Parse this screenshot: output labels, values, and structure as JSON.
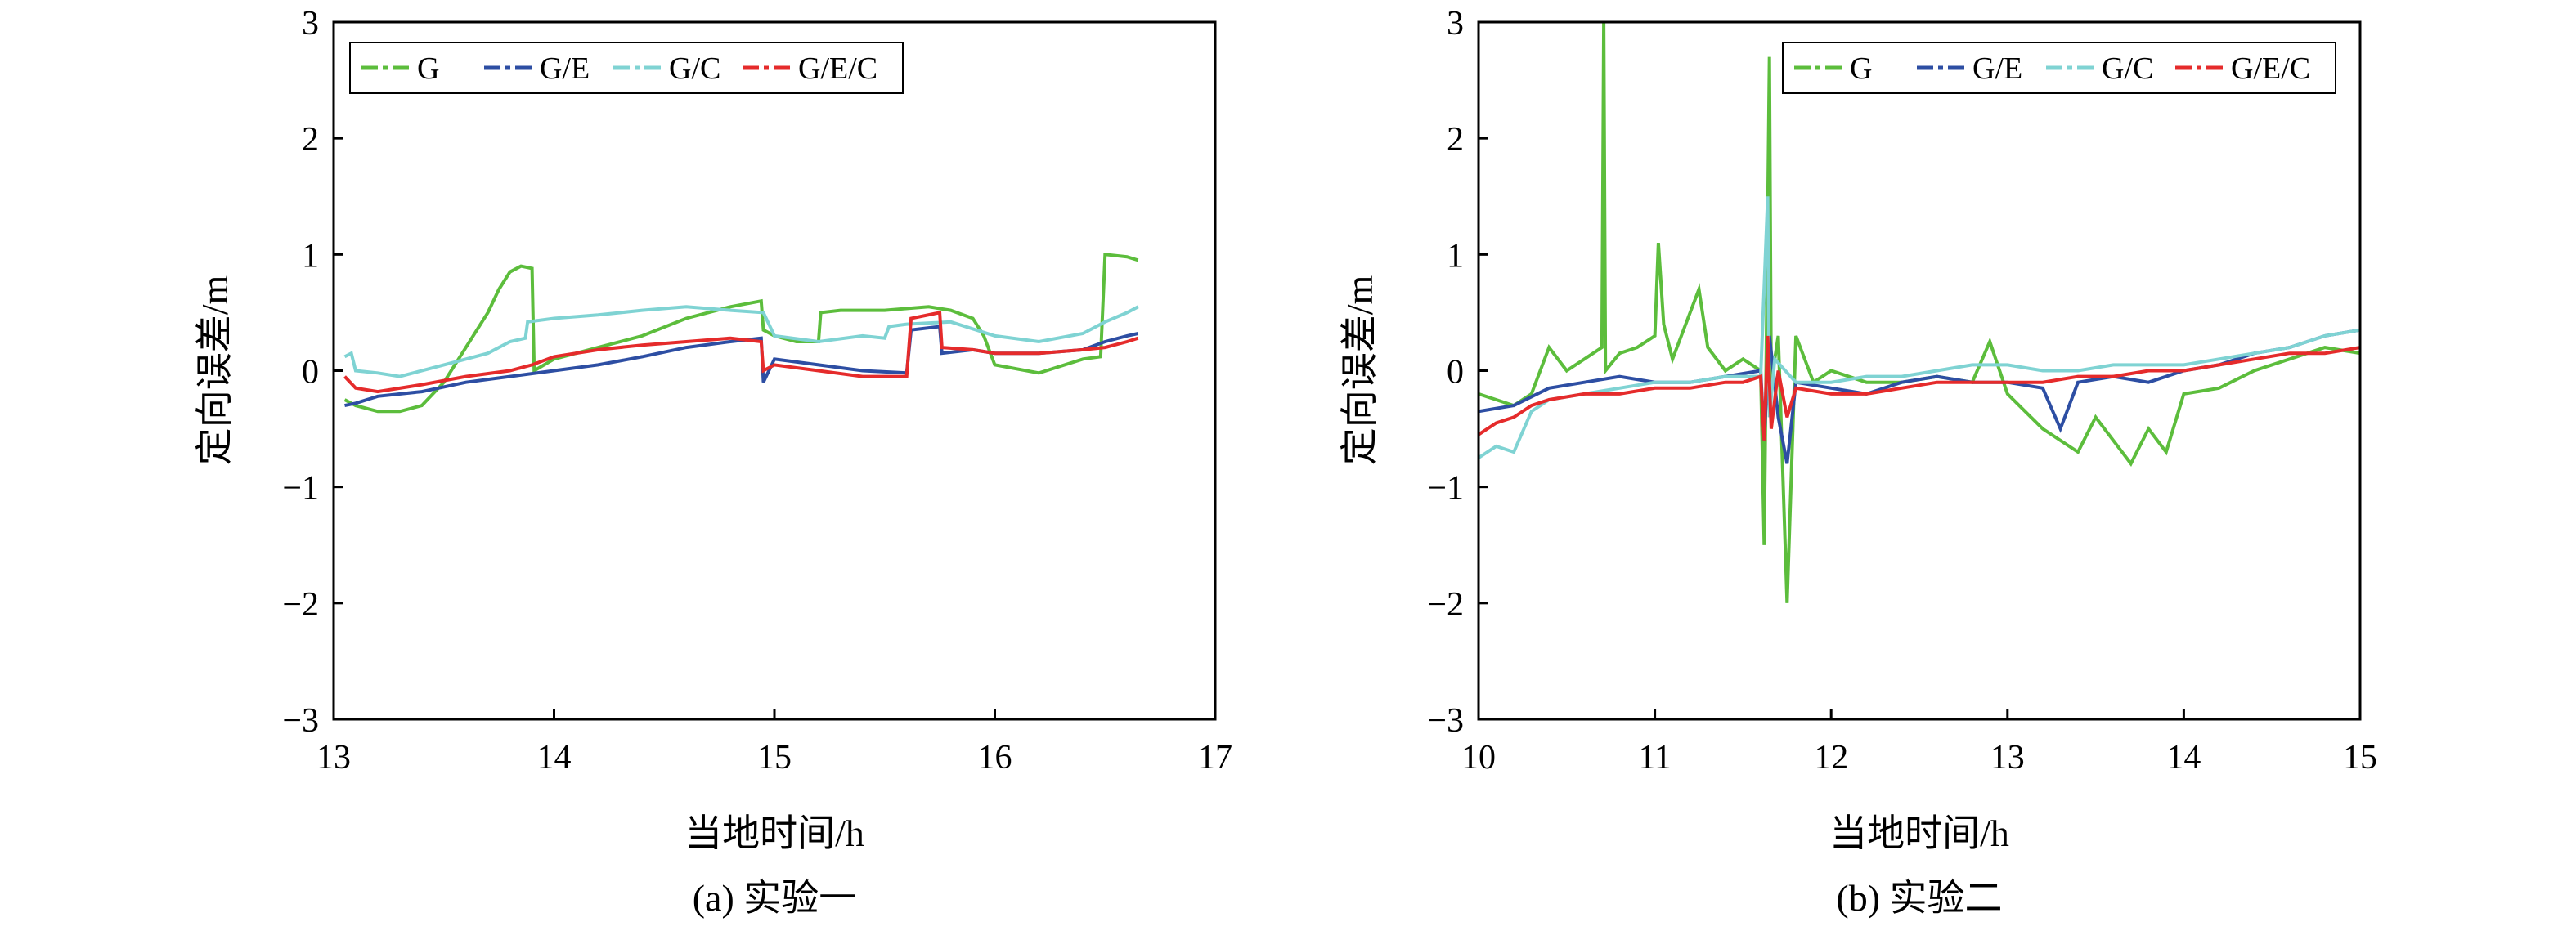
{
  "chart_data": [
    {
      "type": "line",
      "caption": "(a) 实验一",
      "xlabel": "当地时间/h",
      "ylabel": "定向误差/m",
      "xlim": [
        13,
        17
      ],
      "ylim": [
        -3,
        3
      ],
      "xticks": [
        13,
        14,
        15,
        16,
        17
      ],
      "yticks": [
        3,
        2,
        1,
        0,
        -1,
        -2,
        -3
      ],
      "ytick_labels": [
        "3",
        "2",
        "1",
        "0",
        "−1",
        "−2",
        "−3"
      ],
      "grid": false,
      "legend_position": "top-left",
      "series": [
        {
          "name": "G",
          "color": "#5cbd3c",
          "x": [
            13.05,
            13.1,
            13.2,
            13.3,
            13.4,
            13.5,
            13.6,
            13.7,
            13.75,
            13.8,
            13.85,
            13.9,
            13.91,
            14.0,
            14.2,
            14.4,
            14.6,
            14.8,
            14.94,
            14.95,
            15.0,
            15.1,
            15.2,
            15.21,
            15.3,
            15.5,
            15.7,
            15.8,
            15.9,
            15.95,
            16.0,
            16.2,
            16.4,
            16.48,
            16.5,
            16.6,
            16.65
          ],
          "y": [
            -0.25,
            -0.3,
            -0.35,
            -0.35,
            -0.3,
            -0.1,
            0.2,
            0.5,
            0.7,
            0.85,
            0.9,
            0.88,
            0.0,
            0.1,
            0.2,
            0.3,
            0.45,
            0.55,
            0.6,
            0.35,
            0.3,
            0.25,
            0.25,
            0.5,
            0.52,
            0.52,
            0.55,
            0.52,
            0.45,
            0.3,
            0.05,
            -0.02,
            0.1,
            0.12,
            1.0,
            0.98,
            0.95
          ]
        },
        {
          "name": "G/E",
          "color": "#2d4ea3",
          "x": [
            13.05,
            13.1,
            13.2,
            13.4,
            13.6,
            13.8,
            14.0,
            14.2,
            14.4,
            14.6,
            14.8,
            14.94,
            14.95,
            15.0,
            15.2,
            15.4,
            15.6,
            15.62,
            15.75,
            15.76,
            15.9,
            16.0,
            16.2,
            16.4,
            16.5,
            16.6,
            16.65
          ],
          "y": [
            -0.3,
            -0.28,
            -0.22,
            -0.18,
            -0.1,
            -0.05,
            0.0,
            0.05,
            0.12,
            0.2,
            0.25,
            0.28,
            -0.1,
            0.1,
            0.05,
            0.0,
            -0.02,
            0.35,
            0.38,
            0.15,
            0.18,
            0.15,
            0.15,
            0.18,
            0.25,
            0.3,
            0.32
          ]
        },
        {
          "name": "G/C",
          "color": "#7fd3d3",
          "x": [
            13.05,
            13.08,
            13.1,
            13.2,
            13.3,
            13.5,
            13.7,
            13.8,
            13.87,
            13.88,
            14.0,
            14.2,
            14.4,
            14.6,
            14.8,
            14.95,
            15.0,
            15.2,
            15.4,
            15.5,
            15.52,
            15.6,
            15.8,
            16.0,
            16.2,
            16.4,
            16.5,
            16.6,
            16.65
          ],
          "y": [
            0.12,
            0.15,
            0.0,
            -0.02,
            -0.05,
            0.05,
            0.15,
            0.25,
            0.28,
            0.42,
            0.45,
            0.48,
            0.52,
            0.55,
            0.52,
            0.5,
            0.3,
            0.25,
            0.3,
            0.28,
            0.38,
            0.4,
            0.42,
            0.3,
            0.25,
            0.32,
            0.42,
            0.5,
            0.55
          ]
        },
        {
          "name": "G/E/C",
          "color": "#e52b2b",
          "x": [
            13.05,
            13.1,
            13.2,
            13.4,
            13.6,
            13.8,
            13.9,
            14.0,
            14.2,
            14.4,
            14.6,
            14.8,
            14.94,
            14.95,
            15.0,
            15.2,
            15.4,
            15.6,
            15.62,
            15.75,
            15.76,
            15.9,
            16.0,
            16.2,
            16.4,
            16.5,
            16.6,
            16.65
          ],
          "y": [
            -0.05,
            -0.15,
            -0.18,
            -0.12,
            -0.05,
            0.0,
            0.05,
            0.12,
            0.18,
            0.22,
            0.25,
            0.28,
            0.25,
            0.0,
            0.05,
            0.0,
            -0.05,
            -0.05,
            0.45,
            0.5,
            0.2,
            0.18,
            0.15,
            0.15,
            0.18,
            0.2,
            0.25,
            0.28
          ]
        }
      ]
    },
    {
      "type": "line",
      "caption": "(b) 实验二",
      "xlabel": "当地时间/h",
      "ylabel": "定向误差/m",
      "xlim": [
        10,
        15
      ],
      "ylim": [
        -3,
        3
      ],
      "xticks": [
        10,
        11,
        12,
        13,
        14,
        15
      ],
      "yticks": [
        3,
        2,
        1,
        0,
        -1,
        -2,
        -3
      ],
      "ytick_labels": [
        "3",
        "2",
        "1",
        "0",
        "−1",
        "−2",
        "−3"
      ],
      "grid": false,
      "legend_position": "top-right",
      "series": [
        {
          "name": "G",
          "color": "#5cbd3c",
          "x": [
            10.0,
            10.2,
            10.3,
            10.4,
            10.5,
            10.6,
            10.7,
            10.71,
            10.72,
            10.8,
            10.9,
            11.0,
            11.02,
            11.05,
            11.1,
            11.2,
            11.25,
            11.3,
            11.4,
            11.5,
            11.6,
            11.62,
            11.65,
            11.66,
            11.7,
            11.75,
            11.8,
            11.9,
            12.0,
            12.2,
            12.4,
            12.6,
            12.8,
            12.9,
            13.0,
            13.2,
            13.4,
            13.5,
            13.6,
            13.7,
            13.8,
            13.9,
            14.0,
            14.2,
            14.4,
            14.6,
            14.8,
            15.0
          ],
          "y": [
            -0.2,
            -0.3,
            -0.2,
            0.2,
            0.0,
            0.1,
            0.2,
            3.0,
            0.0,
            0.15,
            0.2,
            0.3,
            1.1,
            0.4,
            0.1,
            0.5,
            0.7,
            0.2,
            0.0,
            0.1,
            0.0,
            -1.5,
            2.7,
            -0.1,
            0.3,
            -2.0,
            0.3,
            -0.1,
            0.0,
            -0.1,
            -0.1,
            -0.05,
            -0.1,
            0.25,
            -0.2,
            -0.5,
            -0.7,
            -0.4,
            -0.6,
            -0.8,
            -0.5,
            -0.7,
            -0.2,
            -0.15,
            0.0,
            0.1,
            0.2,
            0.15
          ]
        },
        {
          "name": "G/E",
          "color": "#2d4ea3",
          "x": [
            10.0,
            10.2,
            10.4,
            10.6,
            10.8,
            11.0,
            11.2,
            11.4,
            11.6,
            11.62,
            11.65,
            11.7,
            11.75,
            11.8,
            12.0,
            12.2,
            12.4,
            12.6,
            12.8,
            13.0,
            13.2,
            13.3,
            13.4,
            13.6,
            13.8,
            14.0,
            14.2,
            14.4,
            14.6,
            14.8,
            15.0
          ],
          "y": [
            -0.35,
            -0.3,
            -0.15,
            -0.1,
            -0.05,
            -0.1,
            -0.1,
            -0.05,
            0.0,
            -0.6,
            0.3,
            -0.4,
            -0.8,
            -0.1,
            -0.15,
            -0.2,
            -0.1,
            -0.05,
            -0.1,
            -0.1,
            -0.15,
            -0.5,
            -0.1,
            -0.05,
            -0.1,
            0.0,
            0.05,
            0.15,
            0.2,
            0.3,
            0.35
          ]
        },
        {
          "name": "G/C",
          "color": "#7fd3d3",
          "x": [
            10.0,
            10.1,
            10.2,
            10.3,
            10.4,
            10.6,
            10.8,
            11.0,
            11.2,
            11.4,
            11.6,
            11.64,
            11.65,
            11.68,
            11.8,
            12.0,
            12.2,
            12.4,
            12.6,
            12.8,
            13.0,
            13.2,
            13.4,
            13.6,
            13.8,
            14.0,
            14.2,
            14.4,
            14.6,
            14.8,
            15.0
          ],
          "y": [
            -0.75,
            -0.65,
            -0.7,
            -0.35,
            -0.25,
            -0.2,
            -0.15,
            -0.1,
            -0.1,
            -0.05,
            -0.05,
            1.5,
            -0.4,
            0.1,
            -0.1,
            -0.1,
            -0.05,
            -0.05,
            0.0,
            0.05,
            0.05,
            0.0,
            0.0,
            0.05,
            0.05,
            0.05,
            0.1,
            0.15,
            0.2,
            0.3,
            0.35
          ]
        },
        {
          "name": "G/E/C",
          "color": "#e52b2b",
          "x": [
            10.0,
            10.1,
            10.2,
            10.3,
            10.4,
            10.6,
            10.8,
            11.0,
            11.2,
            11.4,
            11.5,
            11.6,
            11.62,
            11.64,
            11.66,
            11.7,
            11.75,
            11.8,
            12.0,
            12.2,
            12.4,
            12.6,
            12.8,
            13.0,
            13.2,
            13.4,
            13.6,
            13.8,
            14.0,
            14.2,
            14.4,
            14.6,
            14.8,
            15.0
          ],
          "y": [
            -0.55,
            -0.45,
            -0.4,
            -0.3,
            -0.25,
            -0.2,
            -0.2,
            -0.15,
            -0.15,
            -0.1,
            -0.1,
            -0.05,
            -0.6,
            0.3,
            -0.5,
            0.0,
            -0.4,
            -0.15,
            -0.2,
            -0.2,
            -0.15,
            -0.1,
            -0.1,
            -0.1,
            -0.1,
            -0.05,
            -0.05,
            0.0,
            0.0,
            0.05,
            0.1,
            0.15,
            0.15,
            0.2
          ]
        }
      ]
    }
  ]
}
